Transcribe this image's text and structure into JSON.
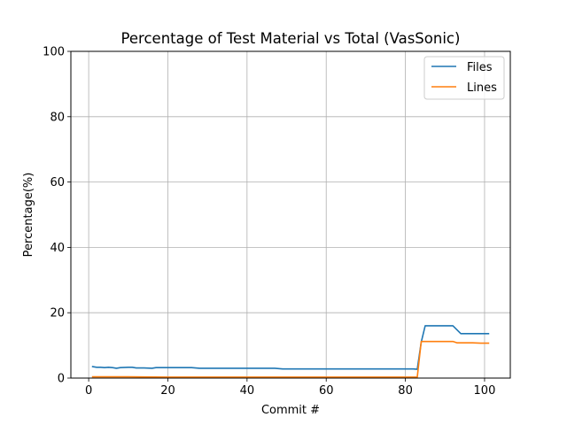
{
  "chart_data": {
    "type": "line",
    "title": "Percentage of Test Material vs Total (VasSonic)",
    "xlabel": "Commit #",
    "ylabel": "Percentage(%)",
    "xlim": [
      -4.5,
      106.5
    ],
    "ylim": [
      0,
      100
    ],
    "xticks": [
      0,
      20,
      40,
      60,
      80,
      100
    ],
    "yticks": [
      0,
      20,
      40,
      60,
      80,
      100
    ],
    "grid": true,
    "legend_position": "top-right",
    "series": [
      {
        "name": "Files",
        "color": "#1f77b4",
        "points": [
          [
            1,
            3.5
          ],
          [
            2,
            3.3
          ],
          [
            3,
            3.3
          ],
          [
            4,
            3.2
          ],
          [
            5,
            3.3
          ],
          [
            6,
            3.2
          ],
          [
            7,
            3.0
          ],
          [
            8,
            3.2
          ],
          [
            10,
            3.3
          ],
          [
            11,
            3.3
          ],
          [
            12,
            3.1
          ],
          [
            14,
            3.1
          ],
          [
            16,
            3.0
          ],
          [
            17,
            3.2
          ],
          [
            20,
            3.2
          ],
          [
            25,
            3.2
          ],
          [
            26,
            3.2
          ],
          [
            28,
            3.0
          ],
          [
            35,
            3.0
          ],
          [
            40,
            3.0
          ],
          [
            45,
            3.0
          ],
          [
            47,
            3.0
          ],
          [
            49,
            2.8
          ],
          [
            55,
            2.8
          ],
          [
            60,
            2.8
          ],
          [
            65,
            2.8
          ],
          [
            70,
            2.8
          ],
          [
            75,
            2.8
          ],
          [
            80,
            2.8
          ],
          [
            82,
            2.8
          ],
          [
            83,
            2.7
          ],
          [
            84,
            11.0
          ],
          [
            85,
            16.0
          ],
          [
            86,
            16.0
          ],
          [
            88,
            16.0
          ],
          [
            90,
            16.0
          ],
          [
            92,
            16.0
          ],
          [
            94,
            13.6
          ],
          [
            96,
            13.6
          ],
          [
            98,
            13.6
          ],
          [
            100,
            13.6
          ],
          [
            101,
            13.6
          ]
        ]
      },
      {
        "name": "Lines",
        "color": "#ff7f0e",
        "points": [
          [
            1,
            0.4
          ],
          [
            10,
            0.4
          ],
          [
            20,
            0.3
          ],
          [
            30,
            0.3
          ],
          [
            40,
            0.3
          ],
          [
            50,
            0.3
          ],
          [
            60,
            0.3
          ],
          [
            70,
            0.3
          ],
          [
            80,
            0.3
          ],
          [
            83,
            0.3
          ],
          [
            84,
            11.2
          ],
          [
            86,
            11.2
          ],
          [
            88,
            11.2
          ],
          [
            90,
            11.2
          ],
          [
            92,
            11.2
          ],
          [
            93,
            10.8
          ],
          [
            95,
            10.8
          ],
          [
            97,
            10.8
          ],
          [
            99,
            10.7
          ],
          [
            101,
            10.7
          ]
        ]
      }
    ]
  }
}
